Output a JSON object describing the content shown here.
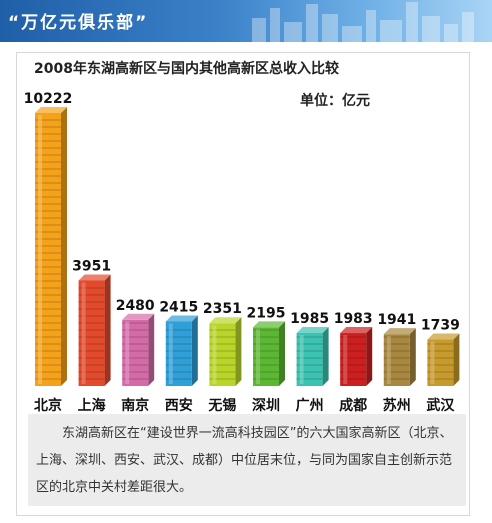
{
  "banner": {
    "title": "“万亿元俱乐部”"
  },
  "chart_data": {
    "type": "bar",
    "title": "2008年东湖高新区与国内其他高新区总收入比较",
    "unit_label": "单位：亿元",
    "categories": [
      "北京",
      "上海",
      "南京",
      "西安",
      "无锡",
      "深圳",
      "广州",
      "成都",
      "苏州",
      "武汉"
    ],
    "values": [
      10222,
      3951,
      2480,
      2415,
      2351,
      2195,
      1985,
      1983,
      1941,
      1739
    ],
    "colors": [
      "#f5a21b",
      "#e24a2b",
      "#d46ba8",
      "#2f9fd8",
      "#b9d52a",
      "#5cb833",
      "#3cc2b0",
      "#cc1f1f",
      "#a8873f",
      "#c79a2c"
    ],
    "ylim": [
      0,
      10222
    ]
  },
  "note": {
    "text": "东湖高新区在“建设世界一流高科技园区”的六大国家高新区（北京、上海、深圳、西安、武汉、成都）中位居末位，与同为国家自主创新示范区的北京中关村差距很大。"
  }
}
